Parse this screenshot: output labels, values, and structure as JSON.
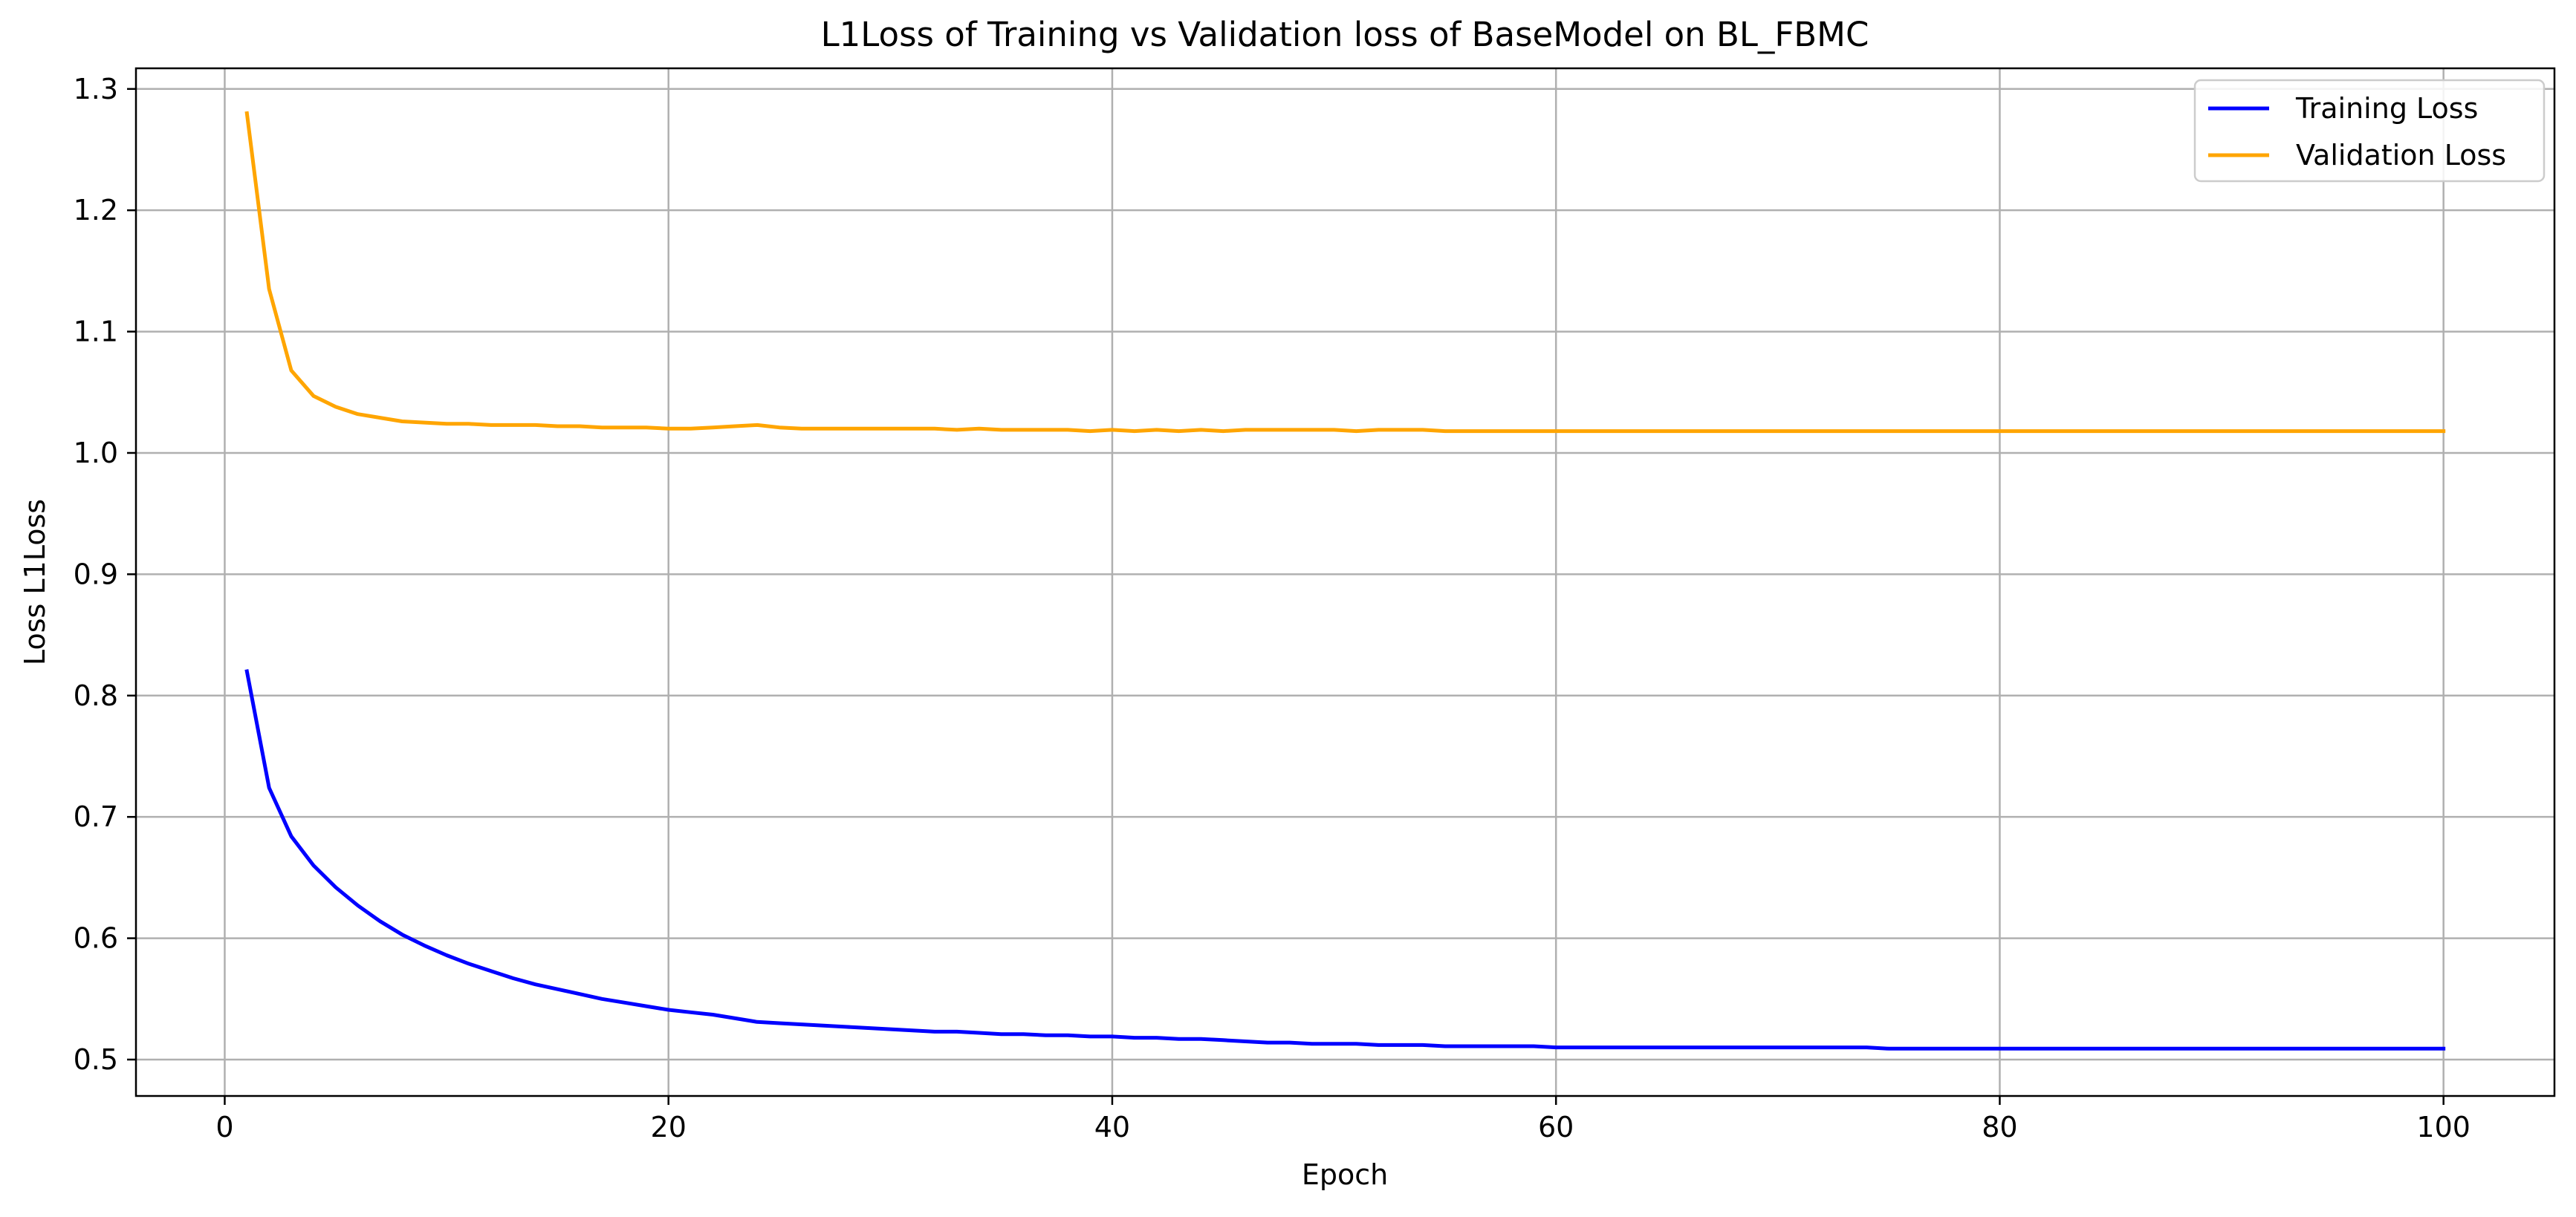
{
  "chart_data": {
    "type": "line",
    "title": "L1Loss of Training vs Validation loss of BaseModel on BL_FBMC",
    "xlabel": "Epoch",
    "ylabel": "Loss L1Loss",
    "xlim": [
      -4,
      105
    ],
    "ylim": [
      0.47,
      1.317
    ],
    "xticks": [
      0,
      20,
      40,
      60,
      80,
      100
    ],
    "xtick_labels": [
      "0",
      "20",
      "40",
      "60",
      "80",
      "100"
    ],
    "yticks": [
      0.5,
      0.6,
      0.7,
      0.8,
      0.9,
      1.0,
      1.1,
      1.2,
      1.3
    ],
    "ytick_labels": [
      "0.5",
      "0.6",
      "0.7",
      "0.8",
      "0.9",
      "1.0",
      "1.1",
      "1.2",
      "1.3"
    ],
    "grid": true,
    "legend_position": "top-right",
    "x": [
      1,
      2,
      3,
      4,
      5,
      6,
      7,
      8,
      9,
      10,
      11,
      12,
      13,
      14,
      15,
      16,
      17,
      18,
      19,
      20,
      21,
      22,
      23,
      24,
      25,
      26,
      27,
      28,
      29,
      30,
      31,
      32,
      33,
      34,
      35,
      36,
      37,
      38,
      39,
      40,
      41,
      42,
      43,
      44,
      45,
      46,
      47,
      48,
      49,
      50,
      51,
      52,
      53,
      54,
      55,
      56,
      57,
      58,
      59,
      60,
      61,
      62,
      63,
      64,
      65,
      66,
      67,
      68,
      69,
      70,
      71,
      72,
      73,
      74,
      75,
      76,
      77,
      78,
      79,
      80,
      81,
      82,
      83,
      84,
      85,
      86,
      87,
      88,
      89,
      90,
      91,
      92,
      93,
      94,
      95,
      96,
      97,
      98,
      99,
      100
    ],
    "series": [
      {
        "name": "Training Loss",
        "color": "#0000ff",
        "values": [
          0.82,
          0.724,
          0.684,
          0.66,
          0.642,
          0.627,
          0.614,
          0.603,
          0.594,
          0.586,
          0.579,
          0.573,
          0.567,
          0.562,
          0.558,
          0.554,
          0.55,
          0.547,
          0.544,
          0.541,
          0.539,
          0.537,
          0.534,
          0.531,
          0.53,
          0.529,
          0.528,
          0.527,
          0.526,
          0.525,
          0.524,
          0.523,
          0.523,
          0.522,
          0.521,
          0.521,
          0.52,
          0.52,
          0.519,
          0.519,
          0.518,
          0.518,
          0.517,
          0.517,
          0.516,
          0.515,
          0.514,
          0.514,
          0.513,
          0.513,
          0.513,
          0.512,
          0.512,
          0.512,
          0.511,
          0.511,
          0.511,
          0.511,
          0.511,
          0.51,
          0.51,
          0.51,
          0.51,
          0.51,
          0.51,
          0.51,
          0.51,
          0.51,
          0.51,
          0.51,
          0.51,
          0.51,
          0.51,
          0.51,
          0.509,
          0.509,
          0.509,
          0.509,
          0.509,
          0.509,
          0.509,
          0.509,
          0.509,
          0.509,
          0.509,
          0.509,
          0.509,
          0.509,
          0.509,
          0.509,
          0.509,
          0.509,
          0.509,
          0.509,
          0.509,
          0.509,
          0.509,
          0.509,
          0.509,
          0.509
        ]
      },
      {
        "name": "Validation Loss",
        "color": "#ffa500",
        "values": [
          1.28,
          1.135,
          1.068,
          1.047,
          1.038,
          1.032,
          1.029,
          1.026,
          1.025,
          1.024,
          1.024,
          1.023,
          1.023,
          1.023,
          1.022,
          1.022,
          1.021,
          1.021,
          1.021,
          1.02,
          1.02,
          1.021,
          1.022,
          1.023,
          1.021,
          1.02,
          1.02,
          1.02,
          1.02,
          1.02,
          1.02,
          1.02,
          1.019,
          1.02,
          1.019,
          1.019,
          1.019,
          1.019,
          1.018,
          1.019,
          1.018,
          1.019,
          1.018,
          1.019,
          1.018,
          1.019,
          1.019,
          1.019,
          1.019,
          1.019,
          1.018,
          1.019,
          1.019,
          1.019,
          1.018,
          1.018,
          1.018,
          1.018,
          1.018,
          1.018,
          1.018,
          1.018,
          1.018,
          1.018,
          1.018,
          1.018,
          1.018,
          1.018,
          1.018,
          1.018,
          1.018,
          1.018,
          1.018,
          1.018,
          1.018,
          1.018,
          1.018,
          1.018,
          1.018,
          1.018,
          1.018,
          1.018,
          1.018,
          1.018,
          1.018,
          1.018,
          1.018,
          1.018,
          1.018,
          1.018,
          1.018,
          1.018,
          1.018,
          1.018,
          1.018,
          1.018,
          1.018,
          1.018,
          1.018,
          1.018
        ]
      }
    ]
  }
}
